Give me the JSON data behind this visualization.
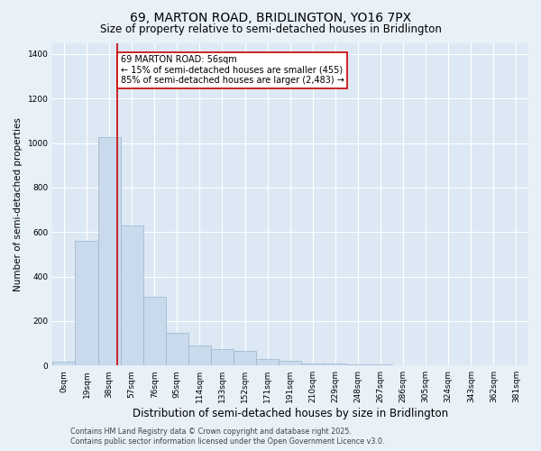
{
  "title": "69, MARTON ROAD, BRIDLINGTON, YO16 7PX",
  "subtitle": "Size of property relative to semi-detached houses in Bridlington",
  "xlabel": "Distribution of semi-detached houses by size in Bridlington",
  "ylabel": "Number of semi-detached properties",
  "bar_color": "#c8daec",
  "bar_edge_color": "#9ab4cc",
  "bg_color": "#dce8f4",
  "grid_color": "#ffffff",
  "fig_bg_color": "#e8f0f8",
  "categories": [
    "0sqm",
    "19sqm",
    "38sqm",
    "57sqm",
    "76sqm",
    "95sqm",
    "114sqm",
    "133sqm",
    "152sqm",
    "171sqm",
    "191sqm",
    "210sqm",
    "229sqm",
    "248sqm",
    "267sqm",
    "286sqm",
    "305sqm",
    "324sqm",
    "343sqm",
    "362sqm",
    "381sqm"
  ],
  "values": [
    18,
    560,
    1025,
    630,
    310,
    148,
    90,
    75,
    65,
    30,
    20,
    10,
    10,
    5,
    5,
    2,
    0,
    0,
    0,
    0,
    0
  ],
  "vline_x": 2.85,
  "vline_color": "#cc0000",
  "annotation_text": "69 MARTON ROAD: 56sqm\n← 15% of semi-detached houses are smaller (455)\n85% of semi-detached houses are larger (2,483) →",
  "annotation_box_color": "#ffffff",
  "annotation_box_edge": "#cc0000",
  "ylim": [
    0,
    1450
  ],
  "yticks": [
    0,
    200,
    400,
    600,
    800,
    1000,
    1200,
    1400
  ],
  "footer": "Contains HM Land Registry data © Crown copyright and database right 2025.\nContains public sector information licensed under the Open Government Licence v3.0.",
  "title_fontsize": 10,
  "subtitle_fontsize": 8.5,
  "tick_fontsize": 6.5,
  "ylabel_fontsize": 7.5,
  "xlabel_fontsize": 8.5,
  "annotation_fontsize": 7,
  "footer_fontsize": 5.8
}
